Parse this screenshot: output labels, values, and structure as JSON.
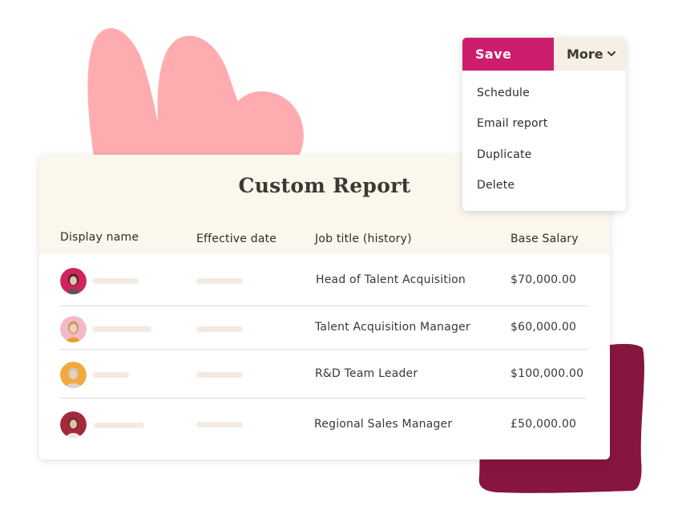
{
  "report": {
    "title": "Custom Report",
    "columns": {
      "display_name": "Display name",
      "effective_date": "Effective date",
      "job_title": "Job title (history)",
      "base_salary": "Base Salary"
    },
    "rows": [
      {
        "job_title": "Head of Talent Acquisition",
        "base_salary": "$70,000.00",
        "avatar_bg": "#d3235f"
      },
      {
        "job_title": "Talent Acquisition Manager",
        "base_salary": "$60,000.00",
        "avatar_bg": "#f3b9c8"
      },
      {
        "job_title": "R&D Team Leader",
        "base_salary": "$100,000.00",
        "avatar_bg": "#f2a93b"
      },
      {
        "job_title": "Regional Sales Manager",
        "base_salary": "£50,000.00",
        "avatar_bg": "#a32a3c"
      }
    ]
  },
  "menu": {
    "save_label": "Save",
    "more_label": "More",
    "items": [
      "Schedule",
      "Email report",
      "Duplicate",
      "Delete"
    ]
  },
  "colors": {
    "accent": "#cc1e6d",
    "header_bg": "#fcf7ec",
    "pink_blob": "#ffacb1",
    "maroon_blob": "#86153f"
  }
}
